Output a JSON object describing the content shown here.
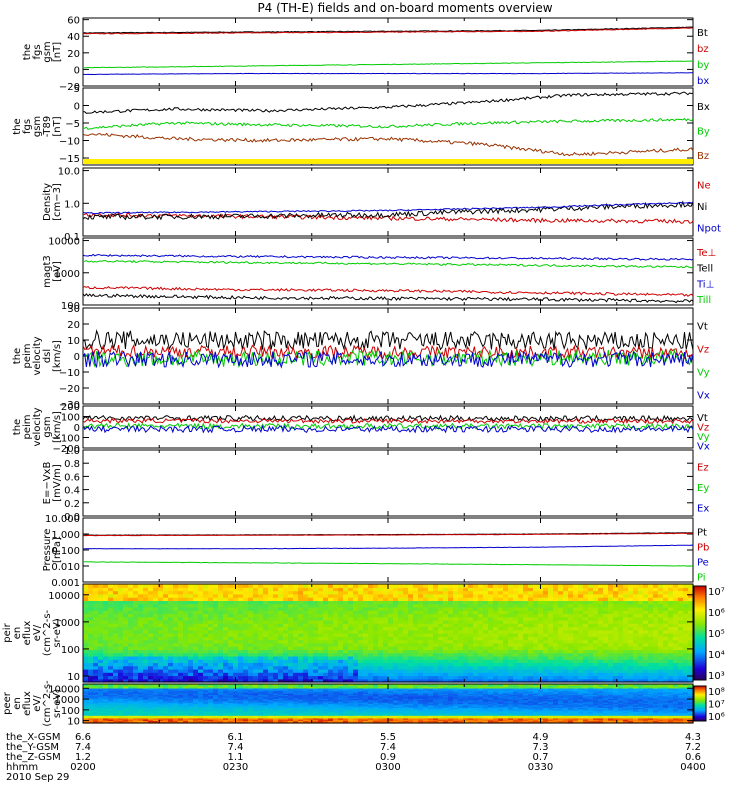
{
  "chart_data": {
    "type": "line",
    "title": "P4 (TH-E) fields and on-board moments overview",
    "time_axis": {
      "ticks": [
        "0200",
        "0230",
        "0300",
        "0330",
        "0400"
      ],
      "range_hours_ut": [
        2.0,
        4.0
      ],
      "date": "2010 Sep 29",
      "ephemeris": [
        {
          "label": "the_X-GSM",
          "values": [
            "6.6",
            "6.1",
            "5.5",
            "4.9",
            "4.3"
          ]
        },
        {
          "label": "the_Y-GSM",
          "values": [
            "7.4",
            "7.4",
            "7.4",
            "7.3",
            "7.2"
          ]
        },
        {
          "label": "the_Z-GSM",
          "values": [
            "1.2",
            "1.1",
            "0.9",
            "0.7",
            "0.6"
          ]
        },
        {
          "label": "hhmm",
          "values": [
            "0200",
            "0230",
            "0300",
            "0330",
            "0400"
          ]
        }
      ]
    },
    "panels": [
      {
        "ylabel": [
          "the",
          "fgs",
          "gsm",
          "[nT]"
        ],
        "scale": "linear",
        "ylim": [
          -20,
          62
        ],
        "ticks": [
          60,
          40,
          20,
          0,
          -20
        ],
        "tick_labels": [
          "60",
          "40",
          "20",
          "0",
          "−20"
        ],
        "series": [
          {
            "name": "Bt",
            "color": "#000000",
            "x": [
              2.0,
              2.5,
              3.0,
              3.5,
              4.0
            ],
            "values": [
              44,
              45,
              46,
              47,
              51
            ],
            "noise": 0.4
          },
          {
            "name": "bz",
            "color": "#cc0000",
            "x": [
              2.0,
              2.5,
              3.0,
              3.5,
              4.0
            ],
            "values": [
              43,
              44,
              45,
              46,
              50
            ],
            "noise": 0.4
          },
          {
            "name": "by",
            "color": "#00cc00",
            "x": [
              2.0,
              2.5,
              3.0,
              3.5,
              4.0
            ],
            "values": [
              2,
              4,
              6,
              8,
              10
            ],
            "noise": 0.3
          },
          {
            "name": "bx",
            "color": "#0000cc",
            "x": [
              2.0,
              2.5,
              3.0,
              3.5,
              4.0
            ],
            "values": [
              -6,
              -5,
              -5,
              -5,
              -4
            ],
            "noise": 0.2
          }
        ]
      },
      {
        "ylabel": [
          "the",
          "fgs",
          "gsm",
          "-T89",
          "[nT]"
        ],
        "scale": "linear",
        "ylim": [
          -17,
          5
        ],
        "ticks": [
          5,
          0,
          -5,
          -10,
          -15
        ],
        "tick_labels": [
          "5",
          "0",
          "−5",
          "−10",
          "−15"
        ],
        "series": [
          {
            "name": "Bx",
            "color": "#000000",
            "x": [
              2.0,
              2.3,
              2.6,
              3.0,
              3.3,
              3.6,
              4.0
            ],
            "values": [
              -2,
              -1,
              -1.5,
              -0.5,
              1,
              3,
              3.5
            ],
            "noise": 0.4
          },
          {
            "name": "By",
            "color": "#00cc00",
            "x": [
              2.0,
              2.3,
              2.6,
              3.0,
              3.3,
              3.6,
              4.0
            ],
            "values": [
              -6.5,
              -5,
              -5.5,
              -6,
              -5,
              -4.5,
              -4
            ],
            "noise": 0.4
          },
          {
            "name": "Bz",
            "color": "#993300",
            "x": [
              2.0,
              2.3,
              2.6,
              3.0,
              3.3,
              3.6,
              4.0
            ],
            "values": [
              -8,
              -9.5,
              -10,
              -9.5,
              -11,
              -14,
              -12.5
            ],
            "noise": 0.5
          }
        ]
      },
      {
        "ylabel": [
          "Density",
          "[cm−3]"
        ],
        "scale": "log",
        "ylim": [
          0.1,
          12
        ],
        "ticks": [
          10,
          1,
          0.1
        ],
        "tick_labels": [
          "10.0",
          "1.0",
          "0.1"
        ],
        "series": [
          {
            "name": "Ne",
            "color": "#cc0000",
            "x": [
              2.0,
              2.5,
              3.0,
              3.5,
              4.0
            ],
            "values": [
              0.45,
              0.4,
              0.35,
              0.3,
              0.28
            ],
            "noise": 0.06
          },
          {
            "name": "Ni",
            "color": "#000000",
            "x": [
              2.0,
              2.5,
              3.0,
              3.5,
              4.0
            ],
            "values": [
              0.38,
              0.4,
              0.45,
              0.65,
              0.95
            ],
            "noise": 0.08
          },
          {
            "name": "Npot",
            "color": "#0000cc",
            "x": [
              2.0,
              2.5,
              3.0,
              3.5,
              4.0
            ],
            "values": [
              0.5,
              0.55,
              0.6,
              0.75,
              1.05
            ],
            "noise": 0.02
          }
        ]
      },
      {
        "ylabel": [
          "magt3",
          "[eV]"
        ],
        "scale": "log",
        "ylim": [
          100,
          12000
        ],
        "ticks": [
          10000,
          1000,
          100
        ],
        "tick_labels": [
          "10000",
          "1000",
          "100"
        ],
        "series": [
          {
            "name": "Te⊥",
            "color": "#cc0000",
            "x": [
              2.0,
              2.5,
              3.0,
              3.5,
              4.0
            ],
            "values": [
              350,
              300,
              280,
              240,
              200
            ],
            "noise": 0.04
          },
          {
            "name": "Tell",
            "color": "#000000",
            "x": [
              2.0,
              2.5,
              3.0,
              3.5,
              4.0
            ],
            "values": [
              200,
              170,
              160,
              150,
              130
            ],
            "noise": 0.05
          },
          {
            "name": "Ti⊥",
            "color": "#0000cc",
            "x": [
              2.0,
              2.5,
              3.0,
              3.5,
              4.0
            ],
            "values": [
              3500,
              3200,
              3000,
              2800,
              2600
            ],
            "noise": 0.03
          },
          {
            "name": "Till",
            "color": "#00cc00",
            "x": [
              2.0,
              2.5,
              3.0,
              3.5,
              4.0
            ],
            "values": [
              2300,
              2100,
              1900,
              1700,
              1500
            ],
            "noise": 0.03
          }
        ]
      },
      {
        "ylabel": [
          "the",
          "peim",
          "velocity",
          "dsl",
          "[km/s]"
        ],
        "scale": "linear",
        "ylim": [
          -30,
          30
        ],
        "ticks": [
          30,
          20,
          10,
          0,
          -10,
          -20,
          -30
        ],
        "tick_labels": [
          "30",
          "20",
          "10",
          "0",
          "−10",
          "−20",
          "−30"
        ],
        "series": [
          {
            "name": "Vt",
            "color": "#000000",
            "x": [
              2.0,
              4.0
            ],
            "values": [
              10,
              9
            ],
            "noise": 6
          },
          {
            "name": "Vz",
            "color": "#cc0000",
            "x": [
              2.0,
              4.0
            ],
            "values": [
              3,
              2
            ],
            "noise": 4
          },
          {
            "name": "Vy",
            "color": "#00cc00",
            "x": [
              2.0,
              4.0
            ],
            "values": [
              -2,
              -1
            ],
            "noise": 5
          },
          {
            "name": "Vx",
            "color": "#0000cc",
            "x": [
              2.0,
              4.0
            ],
            "values": [
              -2,
              -2
            ],
            "noise": 5
          }
        ]
      },
      {
        "ylabel": [
          "the",
          "peim",
          "velocity",
          "gsm",
          "[km/s]"
        ],
        "scale": "linear",
        "ylim": [
          -200,
          200
        ],
        "ticks": [
          200,
          100,
          0,
          -100,
          -200
        ],
        "tick_labels": [
          "200",
          "100",
          "0",
          "−100",
          "−200"
        ],
        "series": [
          {
            "name": "Vt",
            "color": "#000000",
            "x": [
              2.0,
              4.0
            ],
            "values": [
              85,
              80
            ],
            "noise": 25
          },
          {
            "name": "Vz",
            "color": "#cc0000",
            "x": [
              2.0,
              4.0
            ],
            "values": [
              60,
              55
            ],
            "noise": 20
          },
          {
            "name": "Vy",
            "color": "#00cc00",
            "x": [
              2.0,
              4.0
            ],
            "values": [
              10,
              5
            ],
            "noise": 25
          },
          {
            "name": "Vx",
            "color": "#0000cc",
            "x": [
              2.0,
              4.0
            ],
            "values": [
              -20,
              -20
            ],
            "noise": 30
          }
        ]
      },
      {
        "ylabel": [
          "E=−VxB",
          "[mV/m]"
        ],
        "scale": "linear",
        "ylim": [
          0,
          1
        ],
        "ticks": [
          1.0,
          0.8,
          0.6,
          0.4,
          0.2,
          0.0
        ],
        "tick_labels": [
          "1.0",
          "0.8",
          "0.6",
          "0.4",
          "0.2",
          "0.0"
        ],
        "series": [
          {
            "name": "Ez",
            "color": "#cc0000",
            "x": [],
            "values": []
          },
          {
            "name": "Ey",
            "color": "#00cc00",
            "x": [],
            "values": []
          },
          {
            "name": "Ex",
            "color": "#0000cc",
            "x": [],
            "values": []
          }
        ]
      },
      {
        "ylabel": [
          "Pressure",
          "[nPa]"
        ],
        "scale": "log",
        "ylim": [
          0.001,
          10
        ],
        "ticks": [
          10,
          1,
          0.1,
          0.01,
          0.001
        ],
        "tick_labels": [
          "10.000",
          "1.000",
          "0.100",
          "0.010",
          "0.001"
        ],
        "series": [
          {
            "name": "Pt",
            "color": "#000000",
            "x": [
              2.0,
              2.5,
              3.0,
              3.5,
              4.0
            ],
            "values": [
              0.85,
              0.88,
              0.92,
              1.0,
              1.2
            ],
            "noise": 0.01
          },
          {
            "name": "Pb",
            "color": "#cc0000",
            "x": [
              2.0,
              2.5,
              3.0,
              3.5,
              4.0
            ],
            "values": [
              0.8,
              0.83,
              0.87,
              0.95,
              1.1
            ],
            "noise": 0.01
          },
          {
            "name": "Pe",
            "color": "#0000cc",
            "x": [
              2.0,
              2.5,
              3.0,
              3.5,
              4.0
            ],
            "values": [
              0.12,
              0.12,
              0.13,
              0.15,
              0.2
            ],
            "noise": 0.01
          },
          {
            "name": "Pi",
            "color": "#00cc00",
            "x": [
              2.0,
              2.5,
              3.0,
              3.5,
              4.0
            ],
            "values": [
              0.018,
              0.016,
              0.014,
              0.012,
              0.01
            ],
            "noise": 0.01
          }
        ]
      }
    ],
    "spectrograms": [
      {
        "ylabel": [
          "the",
          "peir",
          "en",
          "eflux",
          "eV/",
          "(cm^2-s-",
          "sr-eV)"
        ],
        "scale": "log",
        "ylim": [
          6,
          25000
        ],
        "ticks": [
          10000,
          1000,
          100,
          10
        ],
        "tick_labels": [
          "10000",
          "1000",
          "100",
          "10"
        ],
        "colorbar": {
          "range_log10": [
            3,
            7
          ],
          "ticks": [
            "10⁷",
            "10⁶",
            "10⁵",
            "10⁴",
            "10³"
          ]
        }
      },
      {
        "ylabel": [
          "the",
          "peer",
          "en",
          "eflux",
          "eV/",
          "(cm^2-s-",
          "sr-eV)"
        ],
        "scale": "log",
        "ylim": [
          6,
          25000
        ],
        "ticks": [
          10000,
          1000,
          100,
          10
        ],
        "tick_labels": [
          "10000",
          "1000",
          "100",
          "10"
        ],
        "colorbar": {
          "range_log10": [
            5.5,
            8
          ],
          "ticks": [
            "10⁸",
            "10⁷",
            "10⁶"
          ]
        }
      }
    ]
  }
}
